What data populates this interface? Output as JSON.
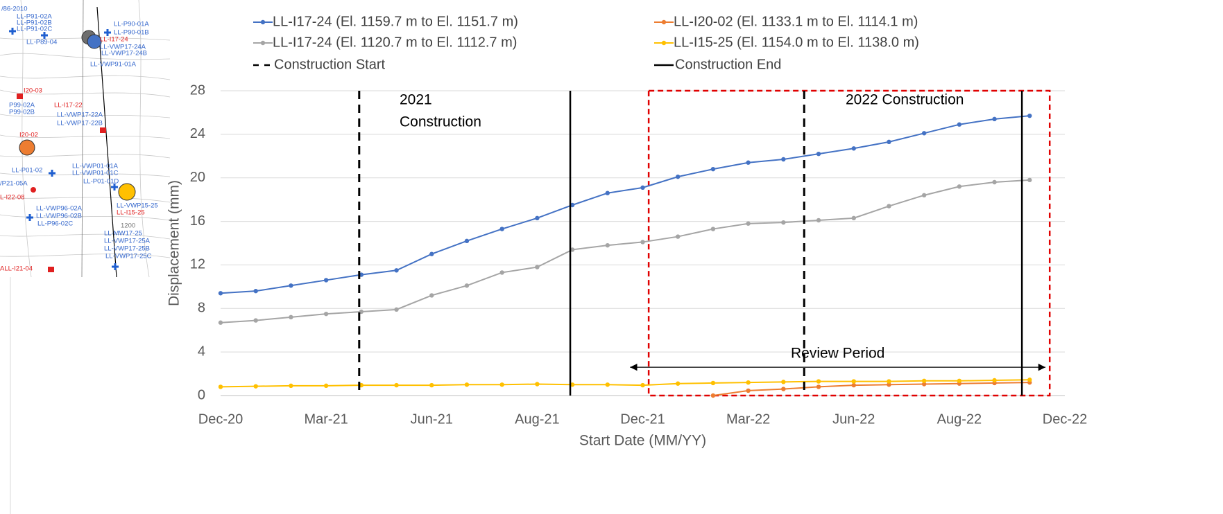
{
  "chart_data": {
    "type": "line",
    "xlabel": "Start Date (MM/YY)",
    "ylabel": "Displacement (mm)",
    "categories": [
      "Dec-20",
      null,
      null,
      "Mar-21",
      null,
      null,
      "Jun-21",
      null,
      null,
      "Aug-21",
      null,
      null,
      "Dec-21",
      null,
      null,
      "Mar-22",
      null,
      null,
      "Jun-22",
      null,
      null,
      "Aug-22",
      null,
      null,
      "Dec-22"
    ],
    "ylim": [
      0,
      28
    ],
    "yticks": [
      0,
      4,
      8,
      12,
      16,
      20,
      24,
      28
    ],
    "grid": true,
    "series": [
      {
        "name": "LL-I17-24 (El. 1159.7 m to El. 1151.7 m)",
        "color": "#4472c4",
        "values": [
          9.4,
          9.6,
          10.1,
          10.6,
          11.1,
          11.5,
          13.0,
          14.2,
          15.3,
          16.3,
          17.5,
          18.6,
          19.1,
          20.1,
          20.8,
          21.4,
          21.7,
          22.2,
          22.7,
          23.3,
          24.1,
          24.9,
          25.4,
          25.7,
          null
        ]
      },
      {
        "name": "LL-I17-24 (El. 1120.7 m to El. 1112.7 m)",
        "color": "#a5a5a5",
        "values": [
          6.7,
          6.9,
          7.2,
          7.5,
          7.7,
          7.9,
          9.2,
          10.1,
          11.3,
          11.8,
          13.4,
          13.8,
          14.1,
          14.6,
          15.3,
          15.8,
          15.9,
          16.1,
          16.3,
          17.4,
          18.4,
          19.2,
          19.6,
          19.8,
          null
        ]
      },
      {
        "name": "LL-I20-02 (El. 1133.1 m to El. 1114.1 m)",
        "color": "#ed7d31",
        "values": [
          null,
          null,
          null,
          null,
          null,
          null,
          null,
          null,
          null,
          null,
          null,
          null,
          null,
          null,
          0.0,
          0.45,
          0.6,
          0.8,
          0.95,
          1.0,
          1.05,
          1.1,
          1.15,
          1.2,
          null
        ]
      },
      {
        "name": "LL-I15-25 (El. 1154.0 m to El. 1138.0 m)",
        "color": "#ffc000",
        "values": [
          0.8,
          0.85,
          0.9,
          0.9,
          0.95,
          0.95,
          0.95,
          1.0,
          1.0,
          1.05,
          1.0,
          1.0,
          0.95,
          1.1,
          1.15,
          1.2,
          1.25,
          1.3,
          1.3,
          1.3,
          1.35,
          1.35,
          1.4,
          1.45,
          null
        ]
      }
    ],
    "reference_lines": [
      {
        "name": "Construction Start",
        "style": "dashed",
        "color": "#000000",
        "x": [
          3.94,
          16.59
        ]
      },
      {
        "name": "Construction End",
        "style": "solid",
        "color": "#000000",
        "x": [
          9.94,
          22.78
        ]
      }
    ],
    "annotations": [
      {
        "lines": [
          "2021",
          "Construction"
        ]
      },
      {
        "lines": [
          "2022 Construction"
        ]
      }
    ],
    "review_box": {
      "color": "#e00000",
      "x": [
        12.17,
        23.57
      ]
    },
    "review_period": {
      "label": "Review Period",
      "x": [
        11.64,
        23.45
      ],
      "y": 2.6
    }
  },
  "map_labels": [
    {
      "text": "/86-2010",
      "color": "#3366cc"
    },
    {
      "text": "LL-P91-02A",
      "color": "#3366cc"
    },
    {
      "text": "LL-P91-02B",
      "color": "#3366cc"
    },
    {
      "text": "LL-P91-02C",
      "color": "#3366cc"
    },
    {
      "text": "LL-P89-04",
      "color": "#3366cc"
    },
    {
      "text": "LL-P90-01A",
      "color": "#3366cc"
    },
    {
      "text": "LL-P90-01B",
      "color": "#3366cc"
    },
    {
      "text": "LL-I17-24",
      "color": "#e02020"
    },
    {
      "text": "LL-VWP17-24A",
      "color": "#3366cc"
    },
    {
      "text": "LL-VWP17-24B",
      "color": "#3366cc"
    },
    {
      "text": "LL-VWP91-01A",
      "color": "#3366cc"
    },
    {
      "text": "I20-03",
      "color": "#e02020"
    },
    {
      "text": "P99-02A",
      "color": "#3366cc"
    },
    {
      "text": "P99-02B",
      "color": "#3366cc"
    },
    {
      "text": "LL-I17-22",
      "color": "#e02020"
    },
    {
      "text": "LL-VWP17-22A",
      "color": "#3366cc"
    },
    {
      "text": "LL-VWP17-22B",
      "color": "#3366cc"
    },
    {
      "text": "I20-02",
      "color": "#e02020"
    },
    {
      "text": "LL-P01-02",
      "color": "#3366cc"
    },
    {
      "text": "LL-VWP01-01A",
      "color": "#3366cc"
    },
    {
      "text": "LL-VWP01-01C",
      "color": "#3366cc"
    },
    {
      "text": "LL-P01-01D",
      "color": "#3366cc"
    },
    {
      "text": "/P21-05A",
      "color": "#3366cc"
    },
    {
      "text": "L-I22-08",
      "color": "#e02020"
    },
    {
      "text": "LL-VWP96-02A",
      "color": "#3366cc"
    },
    {
      "text": "LL-VWP96-02B",
      "color": "#3366cc"
    },
    {
      "text": "LL-P96-02C",
      "color": "#3366cc"
    },
    {
      "text": "LL-VWP15-25",
      "color": "#3366cc"
    },
    {
      "text": "LL-I15-25",
      "color": "#e02020"
    },
    {
      "text": "1200",
      "color": "#777777"
    },
    {
      "text": "LL-MW17-25",
      "color": "#3366cc"
    },
    {
      "text": "LL-VWP17-25A",
      "color": "#3366cc"
    },
    {
      "text": "LL-VWP17-25B",
      "color": "#3366cc"
    },
    {
      "text": "LL-VWP17-25C",
      "color": "#3366cc"
    },
    {
      "text": "ALL-I21-04",
      "color": "#e02020"
    }
  ]
}
